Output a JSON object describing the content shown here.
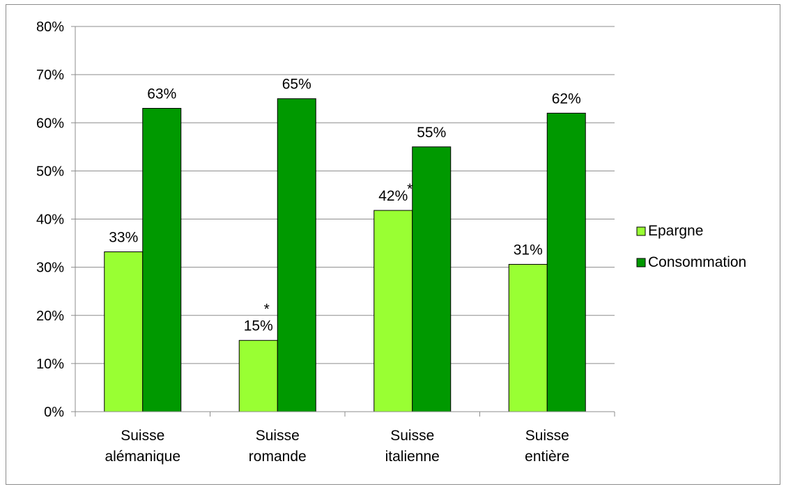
{
  "chart_data": {
    "type": "bar",
    "categories": [
      [
        "Suisse",
        "alémanique"
      ],
      [
        "Suisse",
        "romande"
      ],
      [
        "Suisse",
        "italienne"
      ],
      [
        "Suisse",
        "entière"
      ]
    ],
    "series": [
      {
        "name": "Epargne",
        "color": "#99ff33",
        "values": [
          33.2,
          14.8,
          41.8,
          30.6
        ],
        "labels": [
          "33%",
          "15%",
          "42%",
          "31%"
        ],
        "markers": [
          "",
          "*",
          "*",
          ""
        ]
      },
      {
        "name": "Consommation",
        "color": "#009900",
        "values": [
          63,
          65,
          55,
          62
        ],
        "labels": [
          "63%",
          "65%",
          "55%",
          "62%"
        ],
        "markers": [
          "",
          "",
          "",
          ""
        ]
      }
    ],
    "ylim": [
      0,
      80
    ],
    "yticks": [
      "0%",
      "10%",
      "20%",
      "30%",
      "40%",
      "50%",
      "60%",
      "70%",
      "80%"
    ],
    "ytick_values": [
      0,
      10,
      20,
      30,
      40,
      50,
      60,
      70,
      80
    ],
    "grid": true,
    "legend": "right",
    "title": "",
    "xlabel": "",
    "ylabel": ""
  }
}
